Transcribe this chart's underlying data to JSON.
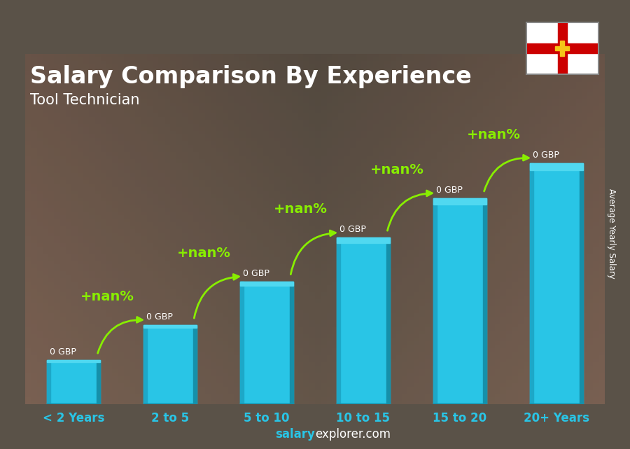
{
  "title": "Salary Comparison By Experience",
  "subtitle": "Tool Technician",
  "categories": [
    "< 2 Years",
    "2 to 5",
    "5 to 10",
    "10 to 15",
    "15 to 20",
    "20+ Years"
  ],
  "values": [
    1.0,
    1.8,
    2.8,
    3.8,
    4.7,
    5.5
  ],
  "bar_color_main": "#29c5e6",
  "bar_color_left": "#1da8c8",
  "bar_color_right": "#1590aa",
  "bar_color_top": "#50d8f0",
  "background_color": "#5a5248",
  "title_color": "#ffffff",
  "subtitle_color": "#ffffff",
  "label_color": "#ffffff",
  "xtick_color": "#29c5e6",
  "salary_label": "0 GBP",
  "pct_label": "+nan%",
  "pct_color": "#88ee00",
  "arrow_color": "#88ee00",
  "ylabel_text": "Average Yearly Salary",
  "watermark_bold": "salary",
  "watermark_normal": "explorer.com",
  "bar_width": 0.55,
  "ylim": [
    0,
    8.0
  ],
  "xlabel_fontsize": 12,
  "title_fontsize": 24,
  "subtitle_fontsize": 15,
  "salary_fontsize": 9,
  "pct_fontsize": 14
}
